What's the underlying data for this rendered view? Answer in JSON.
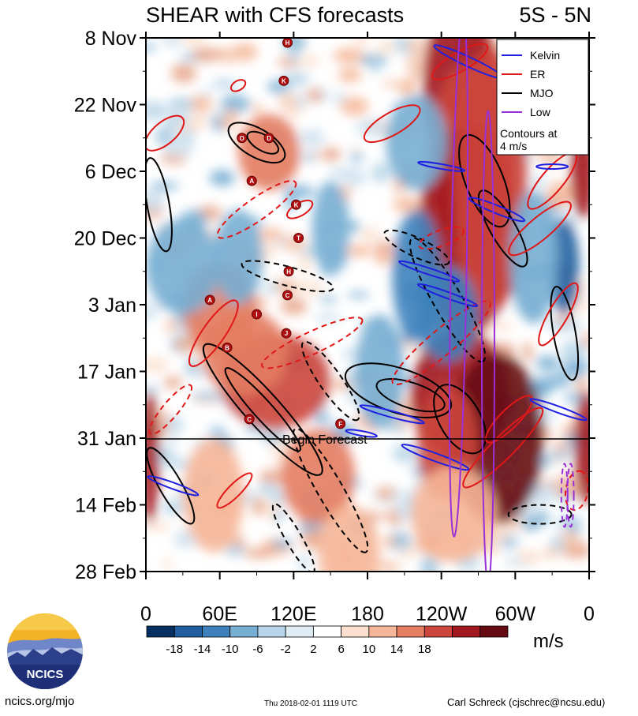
{
  "header": {
    "title": "SHEAR with CFS forecasts",
    "region": "5S - 5N"
  },
  "chart_data": {
    "type": "heatmap",
    "title": "SHEAR with CFS forecasts",
    "subtitle": "5S - 5N",
    "x_axis": {
      "range_deg_east": [
        0,
        360
      ],
      "ticks": [
        {
          "deg": 0,
          "label": "0"
        },
        {
          "deg": 60,
          "label": "60E"
        },
        {
          "deg": 120,
          "label": "120E"
        },
        {
          "deg": 180,
          "label": "180"
        },
        {
          "deg": 240,
          "label": "120W"
        },
        {
          "deg": 300,
          "label": "60W"
        },
        {
          "deg": 360,
          "label": "0"
        }
      ]
    },
    "y_axis": {
      "direction": "time increasing downward",
      "range_days": [
        0,
        112
      ],
      "ticks": [
        {
          "day": 0,
          "label": "8 Nov"
        },
        {
          "day": 14,
          "label": "22 Nov"
        },
        {
          "day": 28,
          "label": "6 Dec"
        },
        {
          "day": 42,
          "label": "20 Dec"
        },
        {
          "day": 56,
          "label": "3 Jan"
        },
        {
          "day": 70,
          "label": "17 Jan"
        },
        {
          "day": 84,
          "label": "31 Jan"
        },
        {
          "day": 98,
          "label": "14 Feb"
        },
        {
          "day": 112,
          "label": "28 Feb"
        }
      ]
    },
    "begin_forecast": {
      "day": 84,
      "label": "Begin Forecast"
    },
    "colorbar": {
      "unit": "m/s",
      "tick_labels": [
        "-18",
        "-14",
        "-10",
        "-6",
        "-2",
        "2",
        "6",
        "10",
        "14",
        "18"
      ],
      "colors": [
        "#052f5f",
        "#1f5fa0",
        "#3d82bd",
        "#77aed3",
        "#b6d5e8",
        "#e0ecf3",
        "#ffffff",
        "#fbe0cf",
        "#f6b697",
        "#e47d62",
        "#cc463c",
        "#a3171f",
        "#660a12"
      ]
    },
    "legend": {
      "placement": "top-right",
      "entries": [
        {
          "name": "Kelvin",
          "color": "#2020e0"
        },
        {
          "name": "ER",
          "color": "#e01818"
        },
        {
          "name": "MJO",
          "color": "#000000"
        },
        {
          "name": "Low",
          "color": "#9a30d8"
        }
      ],
      "note_line1": "Contours at",
      "note_line2": "4 m/s"
    },
    "tc_markers": [
      {
        "letter": "H",
        "lon": 115,
        "day": 1
      },
      {
        "letter": "K",
        "lon": 112,
        "day": 9
      },
      {
        "letter": "O",
        "lon": 78,
        "day": 21
      },
      {
        "letter": "D",
        "lon": 100,
        "day": 21
      },
      {
        "letter": "A",
        "lon": 86,
        "day": 30
      },
      {
        "letter": "K",
        "lon": 122,
        "day": 35
      },
      {
        "letter": "T",
        "lon": 124,
        "day": 42
      },
      {
        "letter": "H",
        "lon": 116,
        "day": 49
      },
      {
        "letter": "C",
        "lon": 115,
        "day": 54
      },
      {
        "letter": "A",
        "lon": 52,
        "day": 55
      },
      {
        "letter": "I",
        "lon": 90,
        "day": 58
      },
      {
        "letter": "J",
        "lon": 114,
        "day": 62
      },
      {
        "letter": "B",
        "lon": 66,
        "day": 65
      },
      {
        "letter": "C",
        "lon": 84,
        "day": 80
      },
      {
        "letter": "F",
        "lon": 158,
        "day": 81
      }
    ]
  },
  "footer": {
    "website": "ncics.org/mjo",
    "timestamp": "Thu 2018-02-01 1119 UTC",
    "credit": "Carl Schreck (cjschrec@ncsu.edu)",
    "logo_text": "NCICS"
  }
}
